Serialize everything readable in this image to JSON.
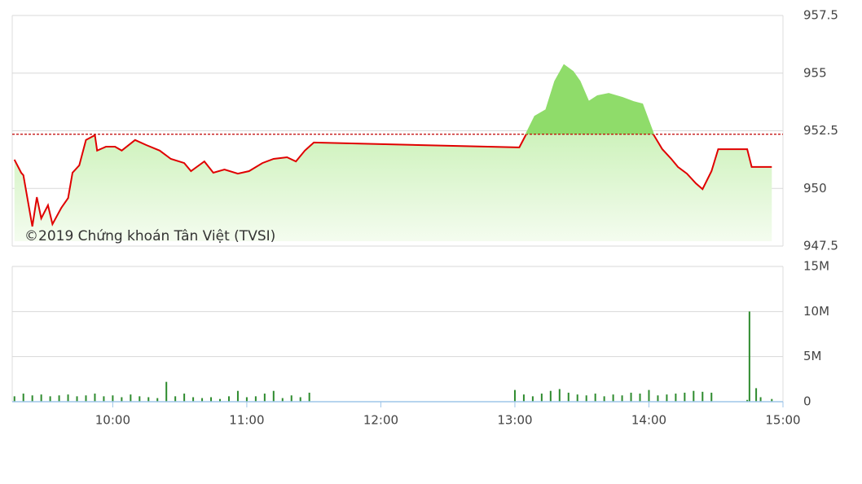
{
  "chart_data": [
    {
      "type": "line",
      "annotation": "©2019 Chứng khoán Tân Việt (TVSI)",
      "x": [
        "09:16",
        "09:19",
        "09:20",
        "09:24",
        "09:26",
        "09:28",
        "09:31",
        "09:33",
        "09:37",
        "09:40",
        "09:42",
        "09:45",
        "09:48",
        "09:52",
        "09:53",
        "09:57",
        "10:01",
        "10:04",
        "10:10",
        "10:15",
        "10:21",
        "10:26",
        "10:32",
        "10:35",
        "10:41",
        "10:45",
        "10:50",
        "10:56",
        "11:01",
        "11:07",
        "11:12",
        "11:18",
        "11:22",
        "11:26",
        "11:30",
        "13:02",
        "13:05",
        "13:09",
        "13:14",
        "13:18",
        "13:22",
        "13:26",
        "13:29",
        "13:33",
        "13:37",
        "13:42",
        "13:48",
        "13:53",
        "13:57",
        "14:02",
        "14:06",
        "14:10",
        "14:13",
        "14:17",
        "14:21",
        "14:24",
        "14:28",
        "14:31",
        "14:44",
        "14:46",
        "14:55"
      ],
      "series": [
        {
          "color": "#e00000",
          "up_color": "#8fdc6a",
          "values": [
            951.25,
            950.68,
            950.57,
            948.35,
            949.62,
            948.7,
            949.27,
            948.45,
            949.16,
            949.58,
            950.68,
            951.0,
            952.1,
            952.31,
            951.64,
            951.81,
            951.81,
            951.64,
            952.1,
            951.88,
            951.64,
            951.28,
            951.1,
            950.75,
            951.17,
            950.68,
            950.82,
            950.64,
            950.75,
            951.1,
            951.28,
            951.35,
            951.17,
            951.64,
            951.99,
            951.78,
            952.34,
            953.12,
            953.4,
            954.64,
            955.34,
            955.06,
            954.64,
            953.75,
            954.0,
            954.1,
            953.93,
            953.75,
            953.65,
            952.34,
            951.7,
            951.28,
            950.93,
            950.64,
            950.22,
            949.97,
            950.75,
            951.7,
            951.7,
            950.93,
            950.93
          ]
        }
      ],
      "reference": 952.35,
      "reference_color": "#c00000",
      "xlim": [
        "09:15",
        "15:00"
      ],
      "ylim": [
        947.5,
        957.5
      ],
      "yticks": [
        947.5,
        950,
        952.5,
        955,
        957.5
      ],
      "grid": true
    },
    {
      "type": "bar",
      "x": [
        "09:16",
        "09:20",
        "09:24",
        "09:28",
        "09:32",
        "09:36",
        "09:40",
        "09:44",
        "09:48",
        "09:52",
        "09:56",
        "10:00",
        "10:04",
        "10:08",
        "10:12",
        "10:16",
        "10:20",
        "10:24",
        "10:28",
        "10:32",
        "10:36",
        "10:40",
        "10:44",
        "10:48",
        "10:52",
        "10:56",
        "11:00",
        "11:04",
        "11:08",
        "11:12",
        "11:16",
        "11:20",
        "11:24",
        "11:28",
        "13:00",
        "13:04",
        "13:08",
        "13:12",
        "13:16",
        "13:20",
        "13:24",
        "13:28",
        "13:32",
        "13:36",
        "13:40",
        "13:44",
        "13:48",
        "13:52",
        "13:56",
        "14:00",
        "14:04",
        "14:08",
        "14:12",
        "14:16",
        "14:20",
        "14:24",
        "14:28",
        "14:44",
        "14:45",
        "14:48",
        "14:50",
        "14:55"
      ],
      "values": [
        600000,
        900000,
        700000,
        800000,
        600000,
        700000,
        800000,
        600000,
        700000,
        900000,
        600000,
        700000,
        500000,
        800000,
        600000,
        500000,
        400000,
        2200000,
        600000,
        900000,
        500000,
        400000,
        500000,
        300000,
        600000,
        1200000,
        500000,
        600000,
        900000,
        1200000,
        400000,
        700000,
        500000,
        1000000,
        1300000,
        800000,
        600000,
        900000,
        1200000,
        1400000,
        1000000,
        800000,
        700000,
        900000,
        600000,
        800000,
        700000,
        1000000,
        900000,
        1300000,
        700000,
        800000,
        900000,
        1000000,
        1200000,
        1100000,
        1000000,
        200000,
        10000000,
        1500000,
        500000,
        300000
      ],
      "color": "#2e8b2e",
      "xlim": [
        "09:15",
        "15:00"
      ],
      "xticks": [
        "10:00",
        "11:00",
        "12:00",
        "13:00",
        "14:00",
        "15:00"
      ],
      "ylim": [
        0,
        15000000
      ],
      "yticks": [
        0,
        {
          "value": 5000000,
          "label": "5M"
        },
        {
          "value": 10000000,
          "label": "10M"
        },
        {
          "value": 15000000,
          "label": "15M"
        }
      ],
      "grid": true
    }
  ]
}
